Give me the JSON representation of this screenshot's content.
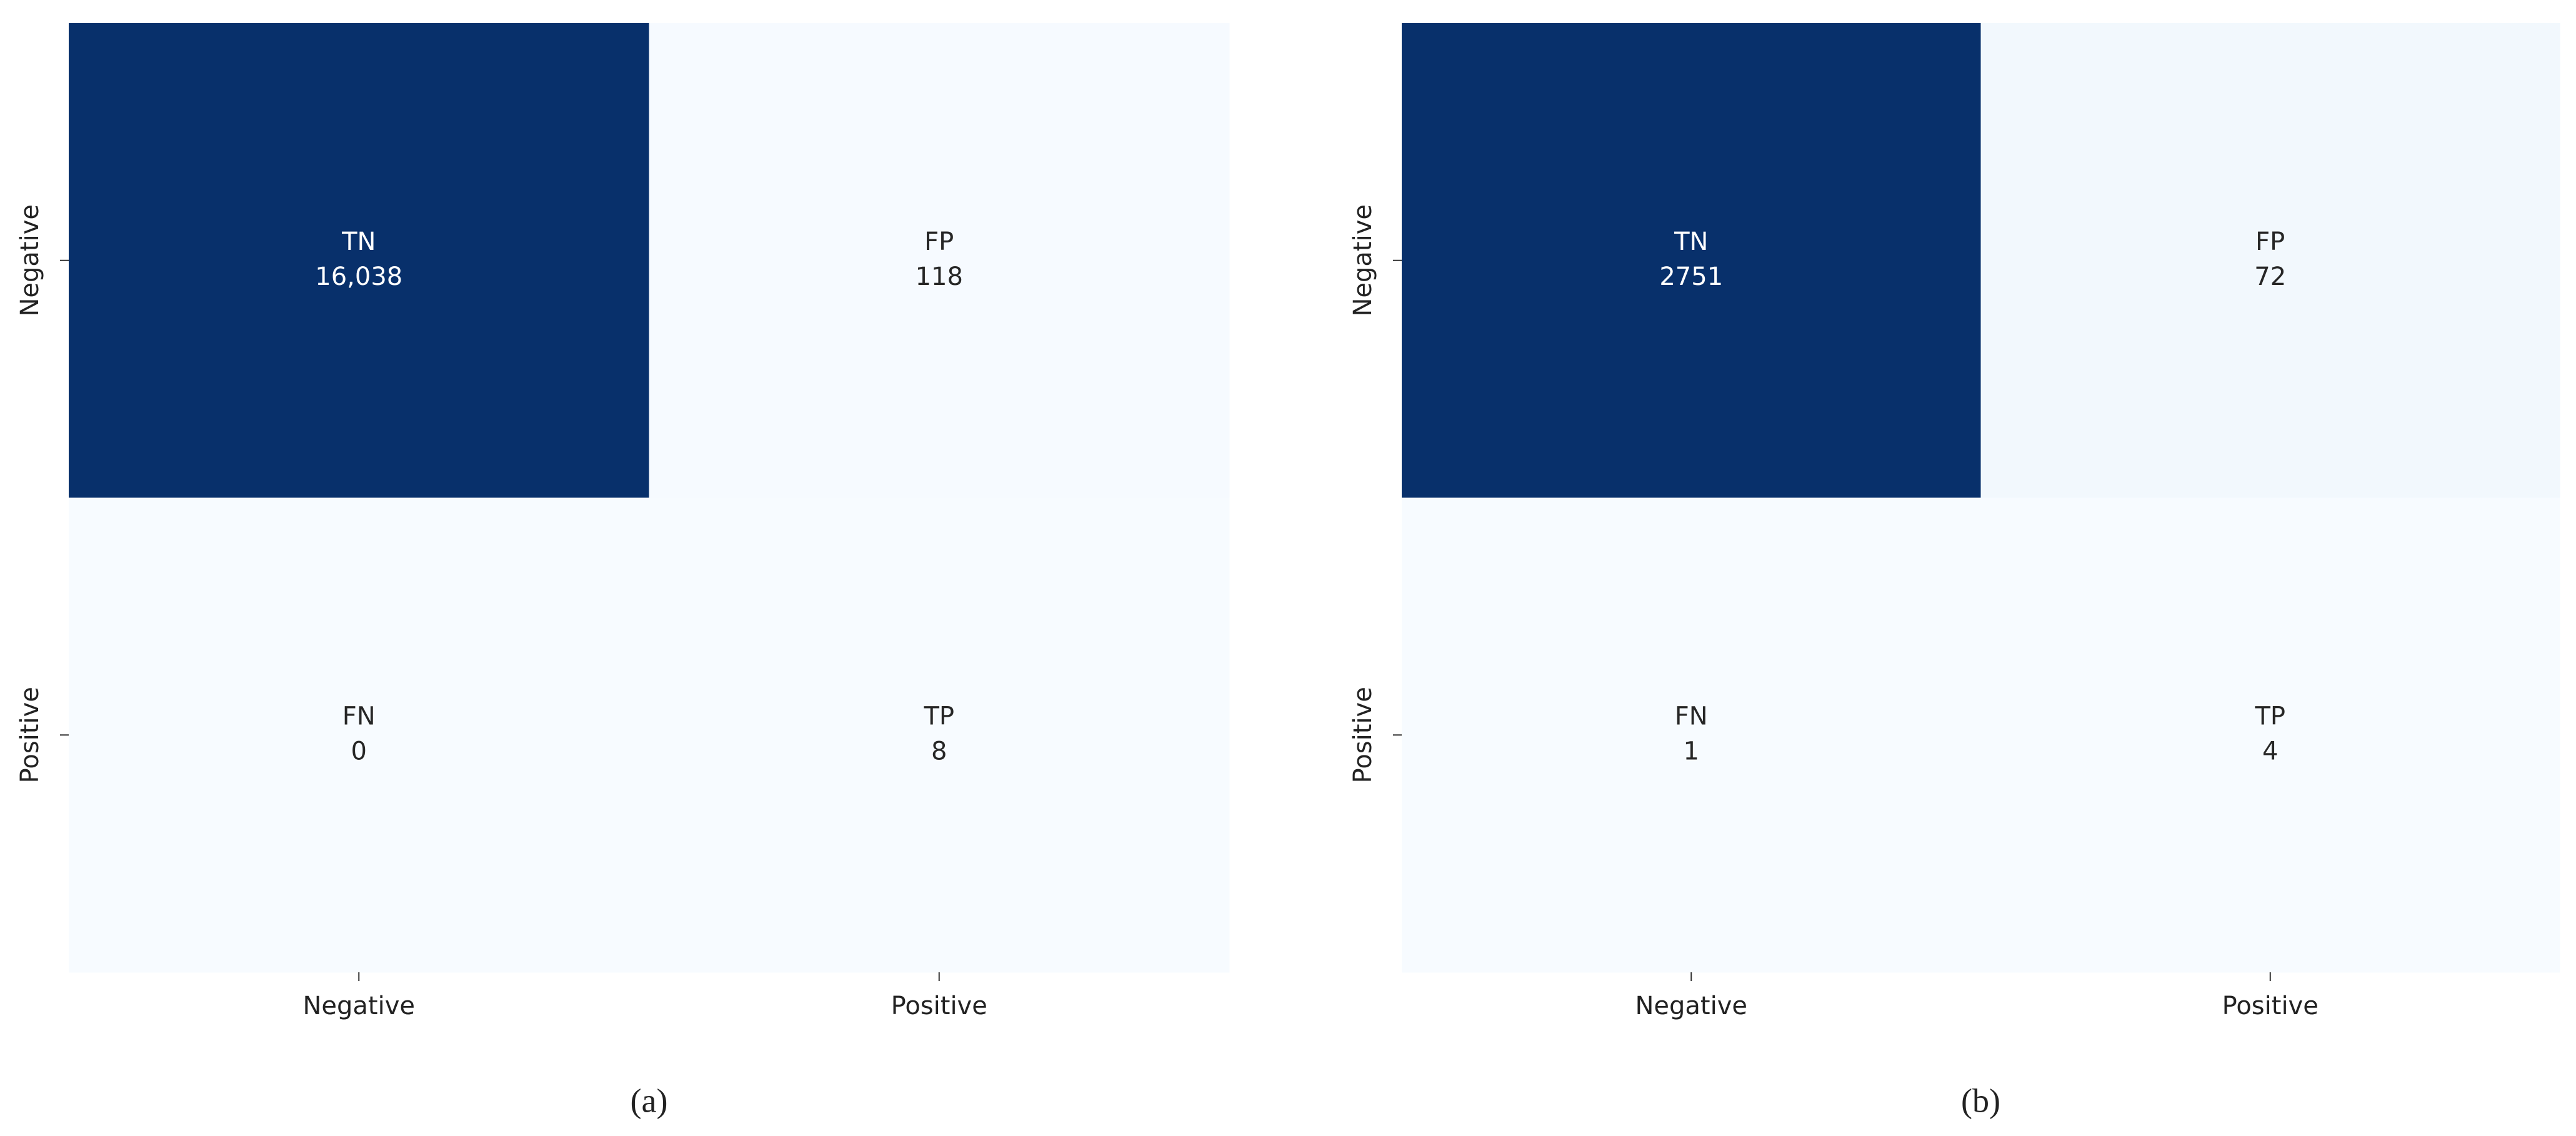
{
  "chart_data": [
    {
      "type": "heatmap",
      "caption": "(a)",
      "x_categories": [
        "Negative",
        "Positive"
      ],
      "y_categories": [
        "Negative",
        "Positive"
      ],
      "cell_names": [
        [
          "TN",
          "FP"
        ],
        [
          "FN",
          "TP"
        ]
      ],
      "values": [
        [
          16038,
          118
        ],
        [
          0,
          8
        ]
      ],
      "value_labels": [
        [
          "16,038",
          "118"
        ],
        [
          "0",
          "8"
        ]
      ],
      "colormap": [
        "#f7fbff",
        "#deebf7",
        "#c6dbef",
        "#9ecae1",
        "#6baed6",
        "#4292c6",
        "#2171b5",
        "#08519c",
        "#08306b"
      ]
    },
    {
      "type": "heatmap",
      "caption": "(b)",
      "x_categories": [
        "Negative",
        "Positive"
      ],
      "y_categories": [
        "Negative",
        "Positive"
      ],
      "cell_names": [
        [
          "TN",
          "FP"
        ],
        [
          "FN",
          "TP"
        ]
      ],
      "values": [
        [
          2751,
          72
        ],
        [
          1,
          4
        ]
      ],
      "colormap": [
        "#f7fbff",
        "#deebf7",
        "#c6dbef",
        "#9ecae1",
        "#6baed6",
        "#4292c6",
        "#2171b5",
        "#08519c",
        "#08306b"
      ]
    }
  ]
}
